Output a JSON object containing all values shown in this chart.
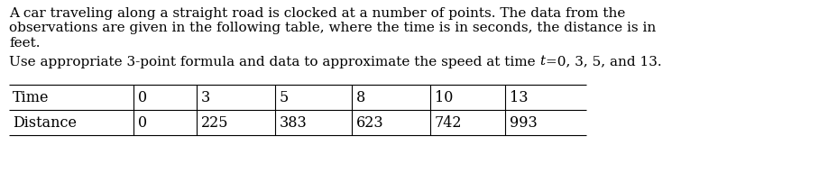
{
  "para1_line1": "A car traveling along a straight road is clocked at a number of points. The data from the",
  "para1_line2": "observations are given in the following table, where the time is in seconds, the distance is in",
  "para1_line3": "feet.",
  "para2_part1": "Use appropriate 3-point formula and data to approximate the speed at time ",
  "para2_part2": "t",
  "para2_part3": "=0, 3, 5, and 13.",
  "table_row1": [
    "Time",
    "0",
    "3",
    "5",
    "8",
    "10",
    "13"
  ],
  "table_row2": [
    "Distance",
    "0",
    "225",
    "383",
    "623",
    "742",
    "993"
  ],
  "bg_color": "#ffffff",
  "text_color": "#000000",
  "font_size_para": 11.0,
  "font_size_table": 11.5,
  "table_line_color": "#000000",
  "fig_width": 9.08,
  "fig_height": 2.12,
  "dpi": 100
}
